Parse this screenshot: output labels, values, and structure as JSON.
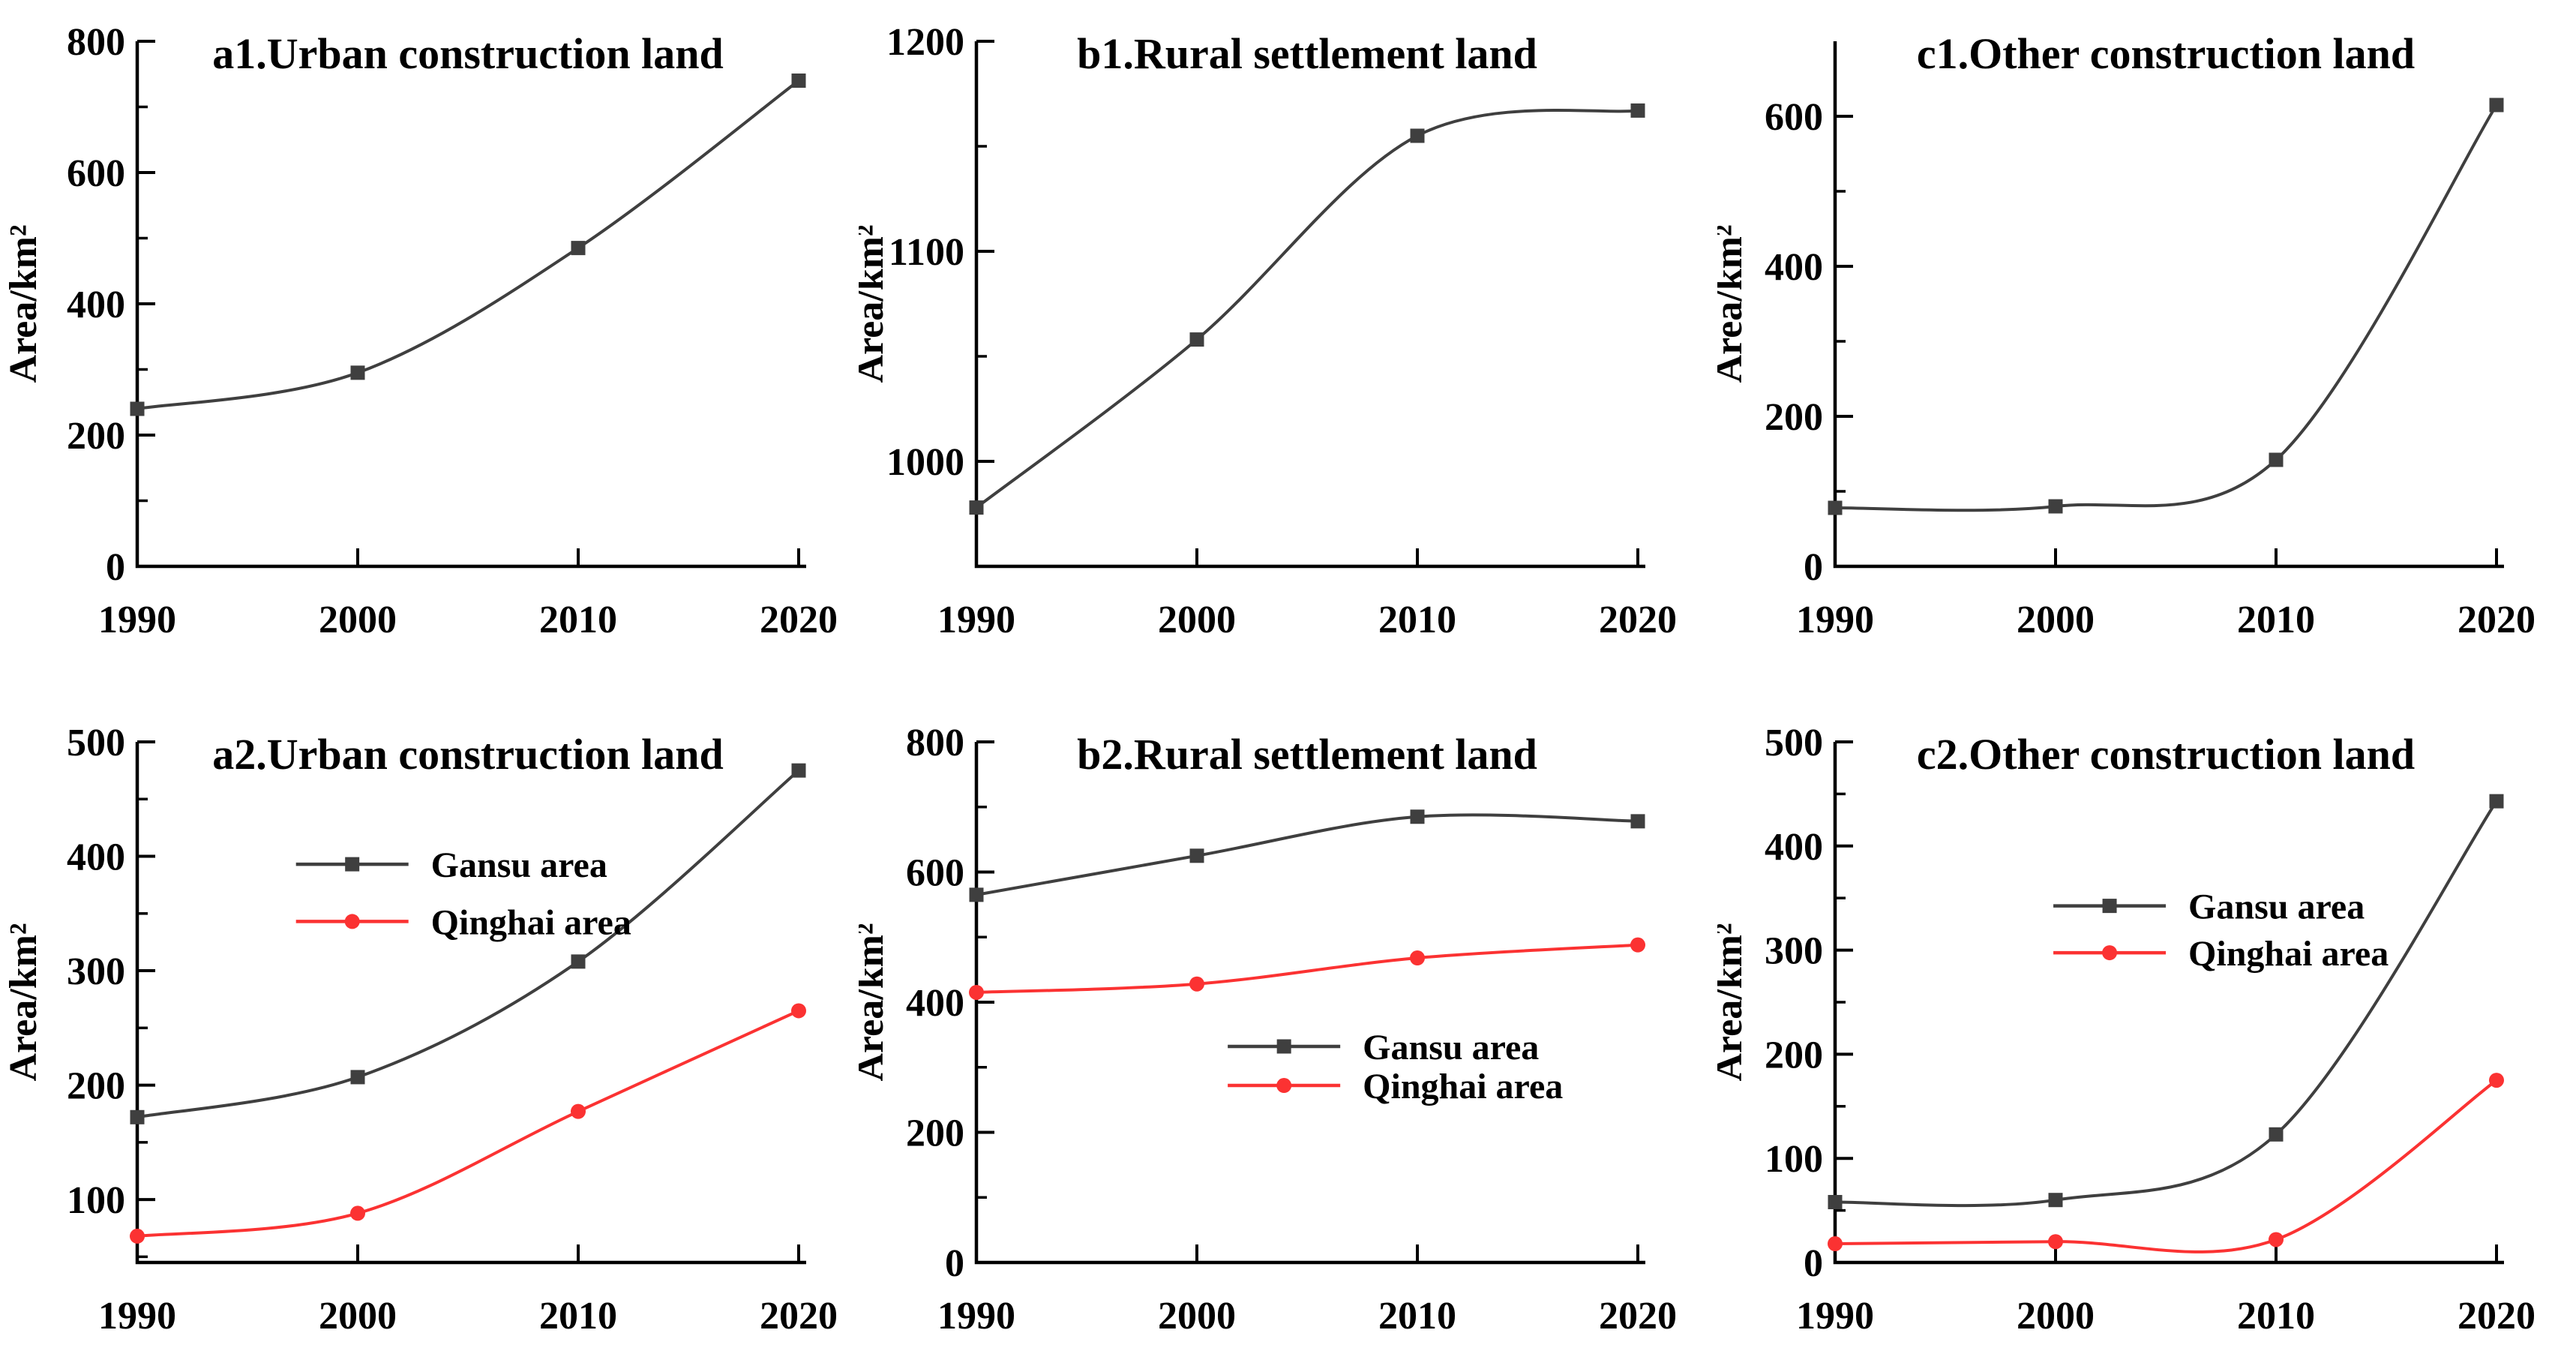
{
  "figure": {
    "background_color": "#ffffff",
    "axis_color": "#000000",
    "text_color": "#000000",
    "accent_colors": {
      "gansu_dark_gray": "#3f3f3f",
      "qinghai_red": "#fb3232"
    },
    "x_years": [
      1990,
      2000,
      2010,
      2020
    ],
    "y_axis_label": "Area/km²",
    "legend_labels": [
      "Gansu area",
      "Qinghai area"
    ]
  },
  "chart_data": [
    {
      "id": "a1",
      "type": "line",
      "title": "a1.Urban construction land",
      "xlabel": "",
      "ylabel": "Area/km²",
      "x": [
        1990,
        2000,
        2010,
        2020
      ],
      "ylim": [
        0,
        800
      ],
      "yticks": [
        0,
        200,
        400,
        600,
        800
      ],
      "yminors": [
        100,
        300,
        500,
        700
      ],
      "grid": false,
      "legend_position": null,
      "series": [
        {
          "name": "",
          "color": "#3f3f3f",
          "marker": "square",
          "values": [
            240,
            295,
            485,
            740
          ]
        }
      ]
    },
    {
      "id": "b1",
      "type": "line",
      "title": "b1.Rural settlement land",
      "xlabel": "",
      "ylabel": "Area/km²",
      "x": [
        1990,
        2000,
        2010,
        2020
      ],
      "ylim": [
        950,
        1200
      ],
      "yticks": [
        1000,
        1100,
        1200
      ],
      "yminors": [
        1050,
        1150
      ],
      "grid": false,
      "legend_position": null,
      "series": [
        {
          "name": "",
          "color": "#3f3f3f",
          "marker": "square",
          "values": [
            978,
            1058,
            1155,
            1167
          ]
        }
      ]
    },
    {
      "id": "c1",
      "type": "line",
      "title": "c1.Other construction land",
      "xlabel": "",
      "ylabel": "Area/km²",
      "x": [
        1990,
        2000,
        2010,
        2020
      ],
      "ylim": [
        0,
        700
      ],
      "yticks": [
        0,
        200,
        400,
        600
      ],
      "yminors": [
        100,
        300,
        500
      ],
      "grid": false,
      "legend_position": null,
      "series": [
        {
          "name": "",
          "color": "#3f3f3f",
          "marker": "square",
          "values": [
            78,
            80,
            142,
            615
          ]
        }
      ]
    },
    {
      "id": "a2",
      "type": "line",
      "title": "a2.Urban construction land",
      "xlabel": "",
      "ylabel": "Area/km²",
      "x": [
        1990,
        2000,
        2010,
        2020
      ],
      "ylim": [
        45,
        500
      ],
      "yticks": [
        100,
        200,
        300,
        400,
        500
      ],
      "yminors": [
        50,
        150,
        250,
        350,
        450
      ],
      "grid": false,
      "legend_position": "upper-left-center",
      "series": [
        {
          "name": "Gansu area",
          "color": "#3f3f3f",
          "marker": "square",
          "values": [
            172,
            207,
            308,
            475
          ]
        },
        {
          "name": "Qinghai area",
          "color": "#fb3232",
          "marker": "circle",
          "values": [
            68,
            88,
            177,
            265
          ]
        }
      ]
    },
    {
      "id": "b2",
      "type": "line",
      "title": "b2.Rural settlement land",
      "xlabel": "",
      "ylabel": "Area/km²",
      "x": [
        1990,
        2000,
        2010,
        2020
      ],
      "ylim": [
        0,
        800
      ],
      "yticks": [
        0,
        200,
        400,
        600,
        800
      ],
      "yminors": [
        100,
        300,
        500,
        700
      ],
      "grid": false,
      "legend_position": "lower-center",
      "series": [
        {
          "name": "Gansu area",
          "color": "#3f3f3f",
          "marker": "square",
          "values": [
            565,
            625,
            685,
            678
          ]
        },
        {
          "name": "Qinghai area",
          "color": "#fb3232",
          "marker": "circle",
          "values": [
            415,
            428,
            468,
            488
          ]
        }
      ]
    },
    {
      "id": "c2",
      "type": "line",
      "title": "c2.Other construction land",
      "xlabel": "",
      "ylabel": "Area/km²",
      "x": [
        1990,
        2000,
        2010,
        2020
      ],
      "ylim": [
        0,
        500
      ],
      "yticks": [
        0,
        100,
        200,
        300,
        400,
        500
      ],
      "yminors": [
        50,
        150,
        250,
        350,
        450
      ],
      "grid": false,
      "legend_position": "center",
      "series": [
        {
          "name": "Gansu area",
          "color": "#3f3f3f",
          "marker": "square",
          "values": [
            58,
            60,
            123,
            443
          ]
        },
        {
          "name": "Qinghai area",
          "color": "#fb3232",
          "marker": "circle",
          "values": [
            18,
            20,
            22,
            175
          ]
        }
      ]
    }
  ]
}
